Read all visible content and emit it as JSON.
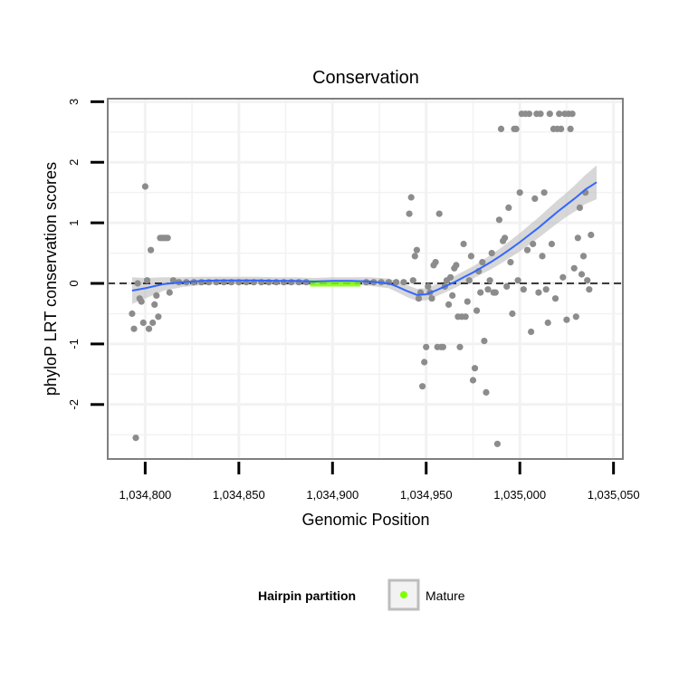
{
  "chart_data": {
    "type": "scatter",
    "title": "Conservation",
    "xlabel": "Genomic Position",
    "ylabel": "phyloP LRT conservation scores",
    "xlim": [
      1034780,
      1035055
    ],
    "ylim": [
      -2.9,
      3.05
    ],
    "x_ticks": [
      1034800,
      1034850,
      1034900,
      1034950,
      1035000,
      1035050
    ],
    "x_tick_labels": [
      "1,034,800",
      "1,034,850",
      "1,034,900",
      "1,034,950",
      "1,035,000",
      "1,035,050"
    ],
    "y_ticks": [
      -2,
      -1,
      0,
      1,
      2,
      3
    ],
    "y_tick_labels": [
      "-2",
      "-1",
      "0",
      "1",
      "2",
      "3"
    ],
    "grid": true,
    "reference_line": {
      "y": 0,
      "style": "dashed"
    },
    "colors": {
      "points": "#8c8c8c",
      "smooth": "#3366ff",
      "ribbon": "#bdbdbd",
      "mature": "#7fff00",
      "panel_border": "#7f7f7f",
      "grid": "#f2f2f2"
    },
    "points": [
      [
        1034793,
        -0.5
      ],
      [
        1034794,
        -0.75
      ],
      [
        1034795,
        -2.55
      ],
      [
        1034796,
        0.0
      ],
      [
        1034797,
        -0.25
      ],
      [
        1034798,
        -0.3
      ],
      [
        1034799,
        -0.65
      ],
      [
        1034800,
        1.6
      ],
      [
        1034801,
        0.05
      ],
      [
        1034802,
        -0.75
      ],
      [
        1034803,
        0.55
      ],
      [
        1034804,
        -0.65
      ],
      [
        1034805,
        -0.35
      ],
      [
        1034806,
        -0.2
      ],
      [
        1034807,
        -0.55
      ],
      [
        1034808,
        0.75
      ],
      [
        1034809,
        0.75
      ],
      [
        1034810,
        0.75
      ],
      [
        1034811,
        0.75
      ],
      [
        1034812,
        0.75
      ],
      [
        1034813,
        -0.15
      ],
      [
        1034815,
        0.05
      ],
      [
        1034818,
        0.02
      ],
      [
        1034822,
        0.02
      ],
      [
        1034826,
        0.02
      ],
      [
        1034830,
        0.02
      ],
      [
        1034834,
        0.02
      ],
      [
        1034838,
        0.02
      ],
      [
        1034842,
        0.02
      ],
      [
        1034846,
        0.02
      ],
      [
        1034850,
        0.02
      ],
      [
        1034854,
        0.02
      ],
      [
        1034858,
        0.02
      ],
      [
        1034862,
        0.02
      ],
      [
        1034866,
        0.02
      ],
      [
        1034870,
        0.02
      ],
      [
        1034874,
        0.02
      ],
      [
        1034878,
        0.02
      ],
      [
        1034882,
        0.02
      ],
      [
        1034886,
        0.02
      ],
      [
        1034918,
        0.02
      ],
      [
        1034922,
        0.02
      ],
      [
        1034926,
        0.02
      ],
      [
        1034930,
        0.02
      ],
      [
        1034934,
        0.02
      ],
      [
        1034938,
        0.02
      ],
      [
        1034941,
        1.15
      ],
      [
        1034942,
        1.42
      ],
      [
        1034943,
        0.05
      ],
      [
        1034944,
        0.45
      ],
      [
        1034945,
        0.55
      ],
      [
        1034946,
        -0.25
      ],
      [
        1034947,
        -0.15
      ],
      [
        1034948,
        -1.7
      ],
      [
        1034949,
        -1.3
      ],
      [
        1034950,
        -1.05
      ],
      [
        1034951,
        -0.05
      ],
      [
        1034952,
        -0.15
      ],
      [
        1034953,
        -0.25
      ],
      [
        1034954,
        0.3
      ],
      [
        1034955,
        0.35
      ],
      [
        1034956,
        -1.05
      ],
      [
        1034957,
        1.15
      ],
      [
        1034958,
        -1.05
      ],
      [
        1034959,
        -1.05
      ],
      [
        1034960,
        -0.05
      ],
      [
        1034961,
        0.05
      ],
      [
        1034962,
        -0.35
      ],
      [
        1034963,
        0.1
      ],
      [
        1034964,
        -0.2
      ],
      [
        1034965,
        0.25
      ],
      [
        1034966,
        0.3
      ],
      [
        1034967,
        -0.55
      ],
      [
        1034968,
        -1.05
      ],
      [
        1034969,
        -0.55
      ],
      [
        1034970,
        0.65
      ],
      [
        1034971,
        -0.55
      ],
      [
        1034972,
        -0.3
      ],
      [
        1034973,
        0.05
      ],
      [
        1034974,
        0.45
      ],
      [
        1034975,
        -1.6
      ],
      [
        1034976,
        -1.4
      ],
      [
        1034977,
        -0.45
      ],
      [
        1034978,
        0.2
      ],
      [
        1034979,
        -0.15
      ],
      [
        1034980,
        0.35
      ],
      [
        1034981,
        -0.95
      ],
      [
        1034982,
        -1.8
      ],
      [
        1034983,
        -0.1
      ],
      [
        1034984,
        0.05
      ],
      [
        1034985,
        0.5
      ],
      [
        1034986,
        -0.15
      ],
      [
        1034987,
        -0.15
      ],
      [
        1034988,
        -2.65
      ],
      [
        1034989,
        1.05
      ],
      [
        1034990,
        2.55
      ],
      [
        1034991,
        0.7
      ],
      [
        1034992,
        0.75
      ],
      [
        1034993,
        -0.05
      ],
      [
        1034994,
        1.25
      ],
      [
        1034995,
        0.35
      ],
      [
        1034996,
        -0.5
      ],
      [
        1034997,
        2.55
      ],
      [
        1034998,
        2.55
      ],
      [
        1034999,
        0.05
      ],
      [
        1035000,
        1.5
      ],
      [
        1035001,
        2.8
      ],
      [
        1035002,
        -0.1
      ],
      [
        1035003,
        2.8
      ],
      [
        1035004,
        0.55
      ],
      [
        1035005,
        2.8
      ],
      [
        1035006,
        -0.8
      ],
      [
        1035007,
        0.65
      ],
      [
        1035008,
        1.4
      ],
      [
        1035009,
        2.8
      ],
      [
        1035010,
        -0.15
      ],
      [
        1035011,
        2.8
      ],
      [
        1035012,
        0.45
      ],
      [
        1035013,
        1.5
      ],
      [
        1035014,
        -0.1
      ],
      [
        1035015,
        -0.65
      ],
      [
        1035016,
        2.8
      ],
      [
        1035017,
        0.65
      ],
      [
        1035018,
        2.55
      ],
      [
        1035019,
        -0.25
      ],
      [
        1035020,
        2.55
      ],
      [
        1035021,
        2.8
      ],
      [
        1035022,
        2.55
      ],
      [
        1035023,
        0.1
      ],
      [
        1035024,
        2.8
      ],
      [
        1035025,
        -0.6
      ],
      [
        1035026,
        2.8
      ],
      [
        1035027,
        2.55
      ],
      [
        1035028,
        2.8
      ],
      [
        1035029,
        0.25
      ],
      [
        1035030,
        -0.55
      ],
      [
        1035031,
        0.75
      ],
      [
        1035032,
        1.25
      ],
      [
        1035033,
        0.15
      ],
      [
        1035034,
        0.45
      ],
      [
        1035035,
        1.5
      ],
      [
        1035036,
        0.05
      ],
      [
        1035037,
        -0.1
      ],
      [
        1035038,
        0.8
      ]
    ],
    "smooth": [
      [
        1034793,
        -0.12
      ],
      [
        1034800,
        -0.08
      ],
      [
        1034810,
        -0.01
      ],
      [
        1034820,
        0.02
      ],
      [
        1034830,
        0.04
      ],
      [
        1034840,
        0.05
      ],
      [
        1034850,
        0.05
      ],
      [
        1034860,
        0.05
      ],
      [
        1034870,
        0.04
      ],
      [
        1034880,
        0.04
      ],
      [
        1034890,
        0.03
      ],
      [
        1034900,
        0.04
      ],
      [
        1034910,
        0.04
      ],
      [
        1034920,
        0.03
      ],
      [
        1034930,
        0.0
      ],
      [
        1034935,
        -0.06
      ],
      [
        1034940,
        -0.13
      ],
      [
        1034945,
        -0.19
      ],
      [
        1034950,
        -0.18
      ],
      [
        1034955,
        -0.12
      ],
      [
        1034960,
        -0.05
      ],
      [
        1034965,
        0.02
      ],
      [
        1034970,
        0.1
      ],
      [
        1034975,
        0.18
      ],
      [
        1034980,
        0.27
      ],
      [
        1034985,
        0.36
      ],
      [
        1034990,
        0.46
      ],
      [
        1034995,
        0.57
      ],
      [
        1035000,
        0.68
      ],
      [
        1035005,
        0.8
      ],
      [
        1035010,
        0.92
      ],
      [
        1035015,
        1.05
      ],
      [
        1035020,
        1.18
      ],
      [
        1035025,
        1.3
      ],
      [
        1035030,
        1.42
      ],
      [
        1035035,
        1.55
      ],
      [
        1035041,
        1.67
      ]
    ],
    "ribbon_halfwidth": [
      0.22,
      0.17,
      0.11,
      0.08,
      0.07,
      0.06,
      0.06,
      0.06,
      0.06,
      0.06,
      0.06,
      0.06,
      0.06,
      0.07,
      0.08,
      0.09,
      0.1,
      0.1,
      0.1,
      0.1,
      0.1,
      0.1,
      0.1,
      0.1,
      0.11,
      0.12,
      0.13,
      0.14,
      0.15,
      0.16,
      0.17,
      0.18,
      0.19,
      0.2,
      0.22,
      0.24,
      0.28
    ],
    "mature_region": [
      1034888,
      1034915
    ],
    "legend": {
      "title": "Hairpin partition",
      "entries": [
        "Mature"
      ]
    }
  }
}
